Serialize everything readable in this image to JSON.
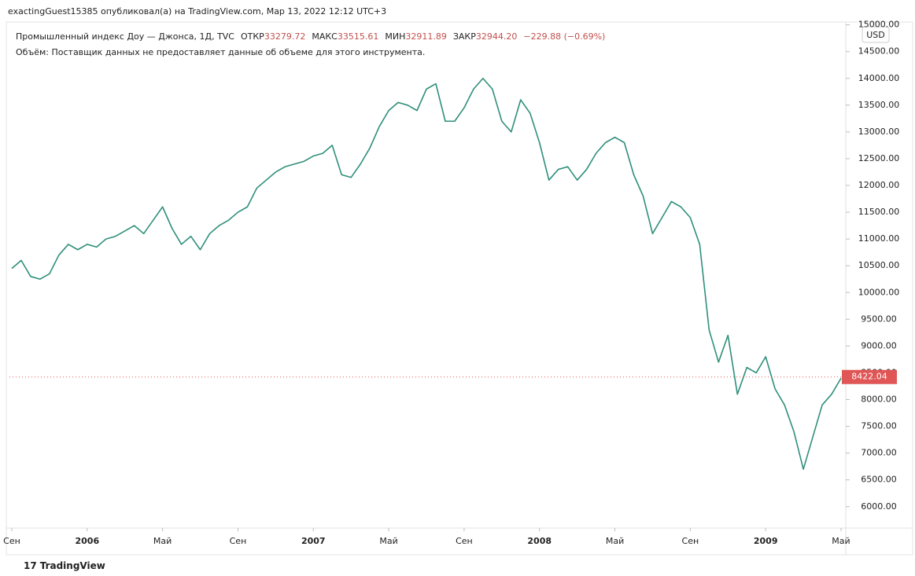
{
  "header": {
    "text": "exactingGuest15385 опубликовал(а) на TradingView.com, Мар 13, 2022 12:12 UTC+3"
  },
  "legend": {
    "symbol": "Промышленный индекс Доу — Джонса, 1Д, TVC",
    "open_label": "ОТКР",
    "open": "33279.72",
    "high_label": "МАКС",
    "high": "33515.61",
    "low_label": "МИН",
    "low": "32911.89",
    "close_label": "ЗАКР",
    "close": "32944.20",
    "change": "−229.88 (−0.69%)",
    "volume_note": "Объём: Поставщик данных не предоставляет данные об объеме для этого инструмента."
  },
  "currency": "USD",
  "last_price": {
    "value": 8422.04,
    "label": "8422.04"
  },
  "footer": {
    "brand": "TradingView"
  },
  "chart_data": {
    "type": "line",
    "color": "#2f8f7a",
    "values": [
      10450,
      10600,
      10300,
      10250,
      10350,
      10700,
      10900,
      10800,
      10900,
      10850,
      11000,
      11050,
      11150,
      11250,
      11100,
      11350,
      11600,
      11200,
      10900,
      11050,
      10800,
      11100,
      11250,
      11350,
      11500,
      11600,
      11950,
      12100,
      12250,
      12350,
      12400,
      12450,
      12550,
      12600,
      12750,
      12200,
      12150,
      12400,
      12700,
      13100,
      13400,
      13550,
      13500,
      13400,
      13800,
      13900,
      13200,
      13200,
      13450,
      13800,
      14000,
      13800,
      13200,
      13000,
      13600,
      13350,
      12800,
      12100,
      12300,
      12350,
      12100,
      12300,
      12600,
      12800,
      12900,
      12800,
      12200,
      11800,
      11100,
      11400,
      11700,
      11600,
      11400,
      10900,
      9300,
      8700,
      9200,
      8100,
      8600,
      8500,
      8800,
      8200,
      7900,
      7400,
      6700,
      7300,
      7900,
      8100,
      8400
    ],
    "xlim": [
      -0.25,
      88.25
    ],
    "xticks": [
      {
        "value": 0,
        "label": "Сен"
      },
      {
        "value": 8,
        "label": "2006"
      },
      {
        "value": 16,
        "label": "Май"
      },
      {
        "value": 24,
        "label": "Сен"
      },
      {
        "value": 32,
        "label": "2007"
      },
      {
        "value": 40,
        "label": "Май"
      },
      {
        "value": 48,
        "label": "Сен"
      },
      {
        "value": 56,
        "label": "2008"
      },
      {
        "value": 64,
        "label": "Май"
      },
      {
        "value": 72,
        "label": "Сен"
      },
      {
        "value": 80,
        "label": "2009"
      },
      {
        "value": 88,
        "label": "Май"
      }
    ],
    "ylim": [
      5600,
      15200
    ],
    "yticks": [
      {
        "value": 6000,
        "label": "6000.00"
      },
      {
        "value": 6500,
        "label": "6500.00"
      },
      {
        "value": 7000,
        "label": "7000.00"
      },
      {
        "value": 7500,
        "label": "7500.00"
      },
      {
        "value": 8000,
        "label": "8000.00"
      },
      {
        "value": 8500,
        "label": "8500.00"
      },
      {
        "value": 9000,
        "label": "9000.00"
      },
      {
        "value": 9500,
        "label": "9500.00"
      },
      {
        "value": 10000,
        "label": "10000.00"
      },
      {
        "value": 10500,
        "label": "10500.00"
      },
      {
        "value": 11000,
        "label": "11000.00"
      },
      {
        "value": 11500,
        "label": "11500.00"
      },
      {
        "value": 12000,
        "label": "12000.00"
      },
      {
        "value": 12500,
        "label": "12500.00"
      },
      {
        "value": 13000,
        "label": "13000.00"
      },
      {
        "value": 13500,
        "label": "13500.00"
      },
      {
        "value": 14000,
        "label": "14000.00"
      },
      {
        "value": 14500,
        "label": "14500.00"
      },
      {
        "value": 15000,
        "label": "15000.00"
      }
    ]
  }
}
